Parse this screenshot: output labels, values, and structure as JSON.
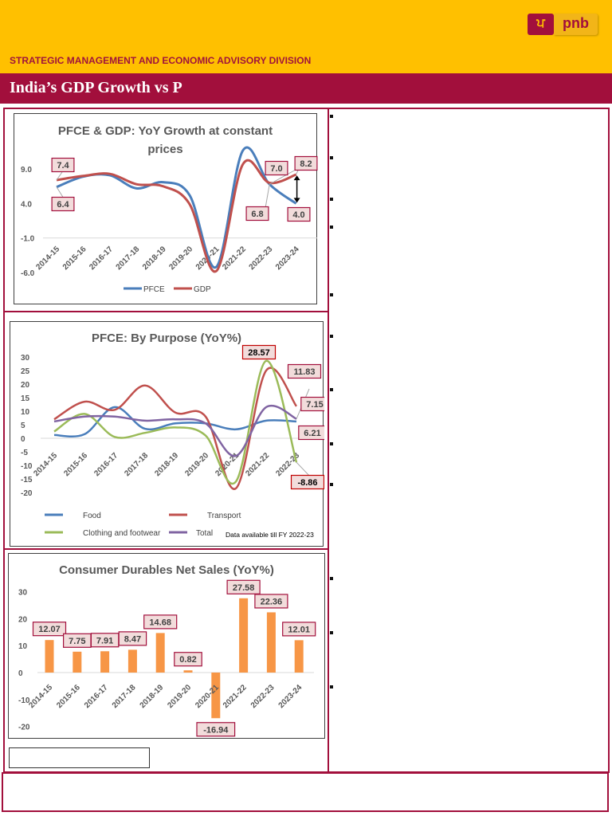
{
  "header": {
    "division": "STRATEGIC MANAGEMENT AND ECONOMIC ADVISORY DIVISION",
    "logo": {
      "mark": "ਪ",
      "word": "pnb"
    },
    "brand_colors": {
      "yellow": "#FFC000",
      "crimson": "#A20F3C"
    }
  },
  "title_bar": {
    "title": "India’s GDP Growth vs P"
  },
  "right_panel": {
    "bullet_count": 12
  },
  "chart_data": [
    {
      "type": "line",
      "title": "PFCE & GDP: YoY Growth at constant prices",
      "title_line1": "PFCE & GDP: YoY Growth at constant",
      "title_line2": "prices",
      "categories": [
        "2014-15",
        "2015-16",
        "2016-17",
        "2017-18",
        "2018-19",
        "2019-20",
        "2020-21",
        "2021-22",
        "2022-23",
        "2023-24"
      ],
      "series": [
        {
          "name": "PFCE",
          "color": "#4A7EBB",
          "values": [
            6.4,
            7.9,
            8.1,
            6.2,
            7.1,
            5.2,
            -5.2,
            11.7,
            6.8,
            4.0
          ]
        },
        {
          "name": "GDP",
          "color": "#C0504D",
          "values": [
            7.4,
            8.0,
            8.3,
            6.8,
            6.5,
            3.9,
            -5.8,
            9.7,
            7.0,
            8.2
          ]
        }
      ],
      "yticks": [
        "9.0",
        "4.0",
        "-1.0",
        "-6.0"
      ],
      "ylim": [
        -6,
        12
      ],
      "data_labels": [
        "7.4",
        "6.4",
        "7.0",
        "8.2",
        "6.8",
        "4.0"
      ],
      "legend": [
        "PFCE",
        "GDP"
      ],
      "legend_position": "bottom",
      "annotation": "double-headed arrow between GDP 8.2 and PFCE 4.0 in 2023-24",
      "xlabel": "",
      "ylabel": ""
    },
    {
      "type": "line",
      "title": "PFCE: By Purpose (YoY%)",
      "categories": [
        "2014-15",
        "2015-16",
        "2016-17",
        "2017-18",
        "2018-19",
        "2019-20",
        "2020-21",
        "2021-22",
        "2022-23"
      ],
      "series": [
        {
          "name": "Food",
          "color": "#4A7EBB",
          "values": [
            1.2,
            1.5,
            11.5,
            3.5,
            5.5,
            5.5,
            3.3,
            6.5,
            6.21
          ]
        },
        {
          "name": "Transport",
          "color": "#C0504D",
          "values": [
            7.0,
            13.5,
            10.5,
            19.5,
            9.5,
            8.0,
            -18.5,
            25.0,
            11.83
          ]
        },
        {
          "name": "Clothing and footwear",
          "color": "#9BBB59",
          "values": [
            2.5,
            9.0,
            0.5,
            2.0,
            4.0,
            1.0,
            -16.0,
            28.57,
            -8.86
          ]
        },
        {
          "name": "Total",
          "color": "#8064A2",
          "values": [
            6.2,
            8.0,
            8.0,
            6.5,
            7.0,
            5.5,
            -6.5,
            11.5,
            7.15
          ]
        }
      ],
      "yticks": [
        "30",
        "25",
        "20",
        "15",
        "10",
        "5",
        "0",
        "-5",
        "-10",
        "-15",
        "-20"
      ],
      "ylim": [
        -20,
        30
      ],
      "data_labels": [
        "28.57",
        "11.83",
        "7.15",
        "6.21",
        "-8.86"
      ],
      "legend": [
        "Food",
        "Transport",
        "Clothing and footwear",
        "Total"
      ],
      "legend_position": "bottom",
      "note": "Data available till FY 2022-23",
      "xlabel": "",
      "ylabel": ""
    },
    {
      "type": "bar",
      "title": "Consumer Durables Net Sales (YoY%)",
      "categories": [
        "2014-15",
        "2015-16",
        "2016-17",
        "2017-18",
        "2018-19",
        "2019-20",
        "2020-21",
        "2021-22",
        "2022-23",
        "2023-24"
      ],
      "values": [
        12.07,
        7.75,
        7.91,
        8.47,
        14.68,
        0.82,
        -16.94,
        27.58,
        22.36,
        12.01
      ],
      "labels": [
        "12.07",
        "7.75",
        "7.91",
        "8.47",
        "14.68",
        "0.82",
        "-16.94",
        "27.58",
        "22.36",
        "12.01"
      ],
      "color": "#F79646",
      "yticks": [
        "30",
        "20",
        "10",
        "0",
        "-10",
        "-20"
      ],
      "ylim": [
        -20,
        30
      ],
      "xlabel": "",
      "ylabel": ""
    }
  ]
}
